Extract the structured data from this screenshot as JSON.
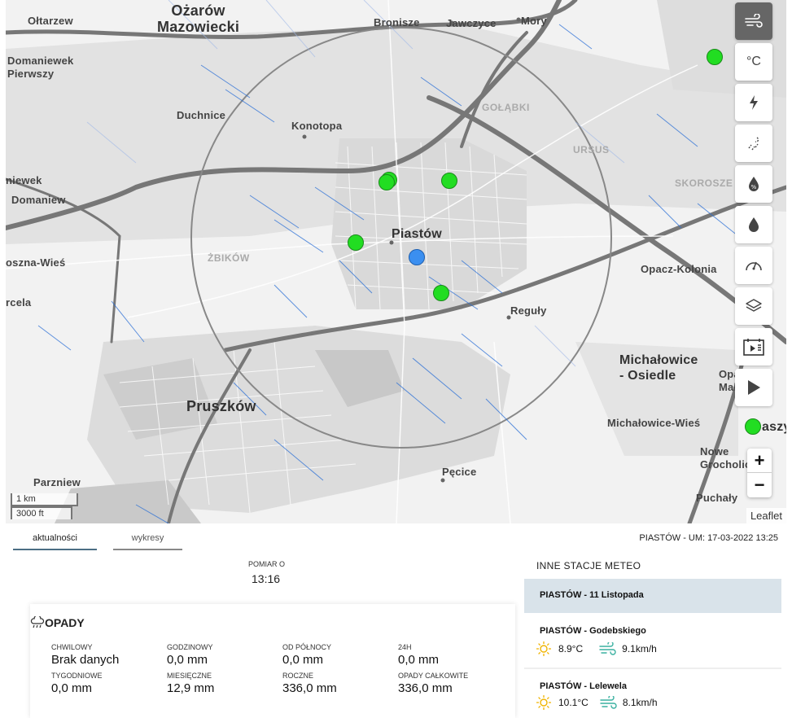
{
  "map": {
    "places": [
      {
        "id": "ozarow",
        "text": "Ożarów\nMazowiecki"
      },
      {
        "id": "oltarzew",
        "text": "Ołtarzew"
      },
      {
        "id": "bronisze",
        "text": "Bronisze"
      },
      {
        "id": "jawczyce",
        "text": "Jawczyce"
      },
      {
        "id": "mory",
        "text": "Mory"
      },
      {
        "id": "domaniewek",
        "text": "Domaniewek\nPierwszy"
      },
      {
        "id": "duchnice",
        "text": "Duchnice"
      },
      {
        "id": "konotopa",
        "text": "Konotopa"
      },
      {
        "id": "golabki",
        "text": "GOŁĄBKI"
      },
      {
        "id": "ursus",
        "text": "URSUS"
      },
      {
        "id": "skorosze",
        "text": "SKOROSZE"
      },
      {
        "id": "niewek",
        "text": "niewek"
      },
      {
        "id": "domaniew",
        "text": "Domaniew"
      },
      {
        "id": "piastow",
        "text": "Piastów"
      },
      {
        "id": "zbikow",
        "text": "ŻBIKÓW"
      },
      {
        "id": "osznawies",
        "text": "osznа-Wieś"
      },
      {
        "id": "opacz",
        "text": "Opacz-Kolonia"
      },
      {
        "id": "rcela",
        "text": "rcela"
      },
      {
        "id": "reguly",
        "text": "Reguły"
      },
      {
        "id": "michalowice",
        "text": "Michałowice\n- Osiedle"
      },
      {
        "id": "opa",
        "text": "Opa\nMała"
      },
      {
        "id": "pruszkow",
        "text": "Pruszków"
      },
      {
        "id": "michwies",
        "text": "Michałowice-Wieś"
      },
      {
        "id": "aszy",
        "text": "aszy"
      },
      {
        "id": "nowe",
        "text": "Nowe\nGrocholic"
      },
      {
        "id": "parzniew",
        "text": "Parzniew"
      },
      {
        "id": "pecice",
        "text": "Pęcice"
      },
      {
        "id": "puchaly",
        "text": "Puchały"
      }
    ],
    "scale_km": "1 km",
    "scale_ft": "3000 ft",
    "attribution": "Leaflet",
    "zoom_in": "+",
    "zoom_out": "−",
    "controls": [
      "wind-icon",
      "temperature-icon",
      "lightning-icon",
      "rain-icon",
      "humidity-icon",
      "precipitation-icon",
      "pressure-icon",
      "layers-icon",
      "calendar-play-icon",
      "play-icon"
    ],
    "temperature_label": "°C"
  },
  "tabs": {
    "current": "aktualności",
    "charts": "wykresy"
  },
  "station_title": "PIASTÓW - UM: 17-03-2022 13:25",
  "measurement": {
    "label": "POMIAR O",
    "time": "13:16"
  },
  "precip": {
    "title": "OPADY",
    "cells": [
      {
        "label": "CHWILOWY",
        "value": "Brak danych"
      },
      {
        "label": "GODZINOWY",
        "value": "0,0 mm"
      },
      {
        "label": "OD PÓŁNOCY",
        "value": "0,0 mm"
      },
      {
        "label": "24H",
        "value": "0,0 mm"
      },
      {
        "label": "TYGODNIOWE",
        "value": "0,0 mm"
      },
      {
        "label": "MIESIĘCZNE",
        "value": "12,9 mm"
      },
      {
        "label": "ROCZNE",
        "value": "336,0 mm"
      },
      {
        "label": "OPADY CAŁKOWITE",
        "value": "336,0 mm"
      }
    ]
  },
  "others": {
    "title": "INNE STACJE METEO",
    "stations": [
      {
        "name": "PIASTÓW - 11 Listopada",
        "temp": "",
        "wind": ""
      },
      {
        "name": "PIASTÓW - Godebskiego",
        "temp": "8.9°C",
        "wind": "9.1km/h"
      },
      {
        "name": "PIASTÓW - Lelewela",
        "temp": "10.1°C",
        "wind": "8.1km/h"
      }
    ]
  },
  "colors": {
    "station_green": "#22dd22",
    "station_active": "#3b8ff0",
    "tab_active": "#4b6e84",
    "selected_row": "#d9e3ea",
    "wind_lines": "#2a6fd6"
  }
}
